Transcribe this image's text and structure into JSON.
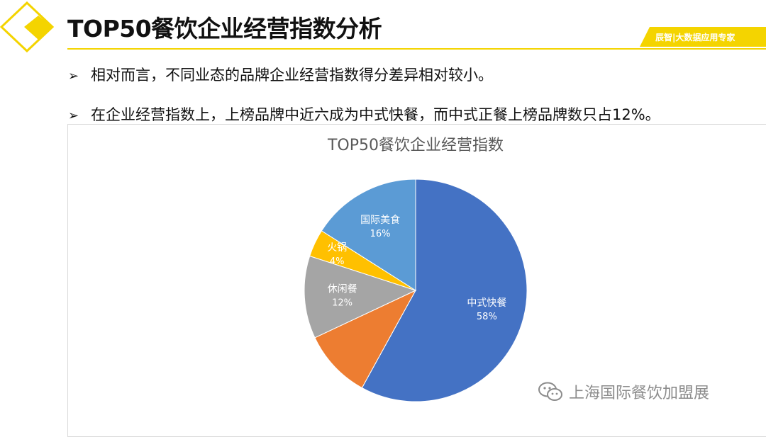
{
  "header": {
    "title": "TOP50餐饮企业经营指数分析",
    "brand_tag": "辰智|大数据应用专家"
  },
  "bullets": [
    {
      "marker": "➢",
      "text": "相对而言，不同业态的品牌企业经营指数得分差异相对较小。"
    },
    {
      "marker": "➢",
      "text": "在企业经营指数上，上榜品牌中近六成为中式快餐，而中式正餐上榜品牌数只占12%。"
    }
  ],
  "chart_data": {
    "type": "pie",
    "title": "TOP50餐饮企业经营指数",
    "slices": [
      {
        "label": "中式快餐",
        "value": 58,
        "value_label": "58%",
        "color": "#4472c4"
      },
      {
        "label": "",
        "value": 10,
        "value_label": "",
        "color": "#ed7d31"
      },
      {
        "label": "休闲餐",
        "value": 12,
        "value_label": "12%",
        "color": "#a5a5a5"
      },
      {
        "label": "火锅",
        "value": 4,
        "value_label": "4%",
        "color": "#ffc000"
      },
      {
        "label": "国际美食",
        "value": 16,
        "value_label": "16%",
        "color": "#5b9bd5"
      }
    ]
  },
  "watermark": {
    "text": "上海国际餐饮加盟展",
    "icon": "wechat-icon"
  },
  "colors": {
    "accent": "#f4d400",
    "title_text": "#595959"
  }
}
